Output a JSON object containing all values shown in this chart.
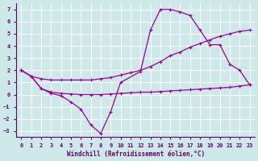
{
  "xlabel": "Windchill (Refroidissement éolien,°C)",
  "background_color": "#cce8e8",
  "grid_color": "#ffffff",
  "line_color": "#990099",
  "ylim": [
    -3.5,
    7.5
  ],
  "xlim": [
    -0.5,
    23.5
  ],
  "yticks": [
    -3,
    -2,
    -1,
    0,
    1,
    2,
    3,
    4,
    5,
    6,
    7
  ],
  "xticks": [
    0,
    1,
    2,
    3,
    4,
    5,
    6,
    7,
    8,
    9,
    10,
    11,
    12,
    13,
    14,
    15,
    16,
    17,
    18,
    19,
    20,
    21,
    22,
    23
  ],
  "line1_x": [
    0,
    1,
    2,
    3,
    4,
    5,
    6,
    7,
    8,
    9,
    10,
    12,
    13,
    14,
    15,
    16,
    17,
    18,
    19,
    20,
    21,
    22,
    23
  ],
  "line1_y": [
    2.0,
    1.5,
    0.5,
    0.1,
    -0.1,
    -0.6,
    -1.2,
    -2.5,
    -3.2,
    -1.4,
    1.0,
    1.9,
    5.3,
    7.0,
    7.0,
    6.8,
    6.5,
    5.3,
    4.1,
    4.1,
    2.5,
    2.0,
    0.8
  ],
  "line2_x": [
    0,
    1,
    2,
    3,
    4,
    5,
    6,
    7,
    8,
    9,
    10,
    11,
    12,
    13,
    14,
    15,
    16,
    17,
    18,
    19,
    20,
    21,
    22,
    23
  ],
  "line2_y": [
    2.0,
    1.5,
    1.3,
    1.2,
    1.2,
    1.2,
    1.2,
    1.2,
    1.3,
    1.4,
    1.6,
    1.8,
    2.0,
    2.3,
    2.7,
    3.2,
    3.5,
    3.9,
    4.2,
    4.5,
    4.8,
    5.0,
    5.2,
    5.3
  ],
  "line3_x": [
    0,
    1,
    2,
    3,
    4,
    5,
    6,
    7,
    8,
    9,
    10,
    11,
    12,
    13,
    14,
    15,
    16,
    17,
    18,
    19,
    20,
    21,
    22,
    23
  ],
  "line3_y": [
    2.0,
    1.5,
    0.5,
    0.2,
    0.1,
    0.05,
    0.0,
    0.0,
    0.0,
    0.05,
    0.1,
    0.15,
    0.2,
    0.2,
    0.25,
    0.3,
    0.35,
    0.4,
    0.45,
    0.5,
    0.55,
    0.6,
    0.7,
    0.8
  ]
}
